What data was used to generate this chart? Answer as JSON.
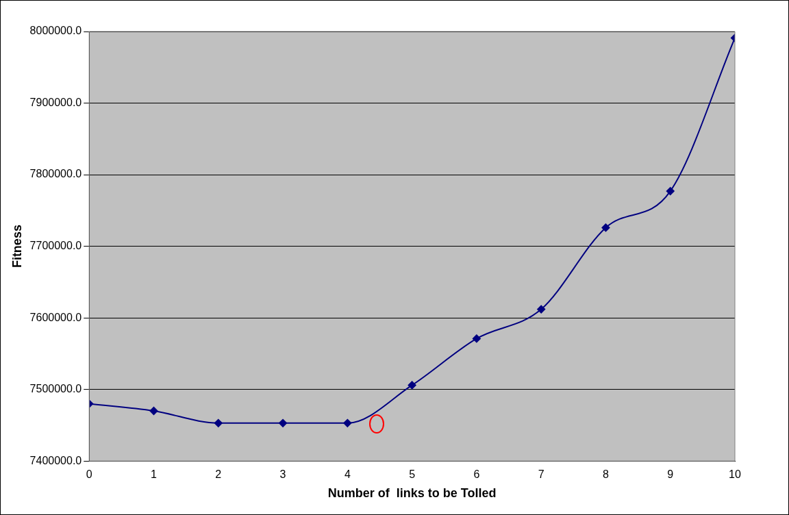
{
  "chart_data": {
    "type": "line",
    "xlabel": "Number of  links to be Tolled",
    "ylabel": "Fitness",
    "x": [
      0,
      1,
      2,
      3,
      4,
      5,
      6,
      7,
      8,
      9,
      10
    ],
    "series": [
      {
        "color": "#000080",
        "values": [
          7480000,
          7470000,
          7453000,
          7453000,
          7453000,
          7506000,
          7571000,
          7612000,
          7726000,
          7777000,
          7991000
        ]
      }
    ],
    "xlim": [
      0,
      10
    ],
    "xticks": [
      0,
      1,
      2,
      3,
      4,
      5,
      6,
      7,
      8,
      9,
      10
    ],
    "ylim": [
      7400000,
      8000000
    ],
    "yticks": [
      {
        "value": 7400000,
        "label": "7400000.0"
      },
      {
        "value": 7500000,
        "label": "7500000.0"
      },
      {
        "value": 7600000,
        "label": "7600000.0"
      },
      {
        "value": 7700000,
        "label": "7700000.0"
      },
      {
        "value": 7800000,
        "label": "7800000.0"
      },
      {
        "value": 7900000,
        "label": "7900000.0"
      },
      {
        "value": 8000000,
        "label": "8000000.0"
      }
    ],
    "grid": "y",
    "legend": false,
    "marker": "diamond",
    "line_style": "solid"
  }
}
